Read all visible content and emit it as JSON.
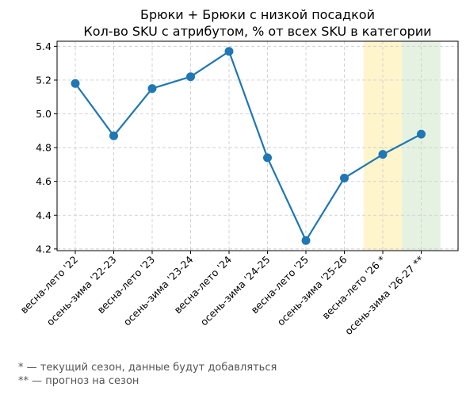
{
  "chart_data": {
    "type": "line",
    "title": "Брюки + Брюки с низкой посадкой",
    "subtitle": "Кол-во SKU с атрибутом, % от всех SKU в категории",
    "xlabel": "",
    "ylabel": "",
    "categories": [
      "весна-лето '22",
      "осень-зима '22-23",
      "весна-лето '23",
      "осень-зима '23-24",
      "весна-лето '24",
      "осень-зима '24-25",
      "весна-лето '25",
      "осень-зима '25-26",
      "весна-лето '26 *",
      "осень-зима '26-27 **"
    ],
    "series": [
      {
        "values": [
          5.18,
          4.87,
          5.15,
          5.22,
          5.37,
          4.74,
          4.25,
          4.62,
          4.76,
          4.88
        ]
      }
    ],
    "ylim": [
      4.19,
      5.43
    ],
    "yticks": [
      4.2,
      4.4,
      4.6,
      4.8,
      5.0,
      5.2,
      5.4
    ],
    "ytick_labels": [
      "4.2",
      "4.4",
      "4.6",
      "4.8",
      "5.0",
      "5.2",
      "5.4"
    ],
    "grid": true,
    "highlights": [
      {
        "category": "весна-лето '26 *",
        "color": "#fff5cc"
      },
      {
        "category": "осень-зима '26-27 **",
        "color": "#e5f2e1"
      }
    ],
    "line_color": "#1f77b4"
  },
  "footnotes": [
    "* — текущий сезон, данные будут добавляться",
    "** — прогноз на сезон"
  ]
}
